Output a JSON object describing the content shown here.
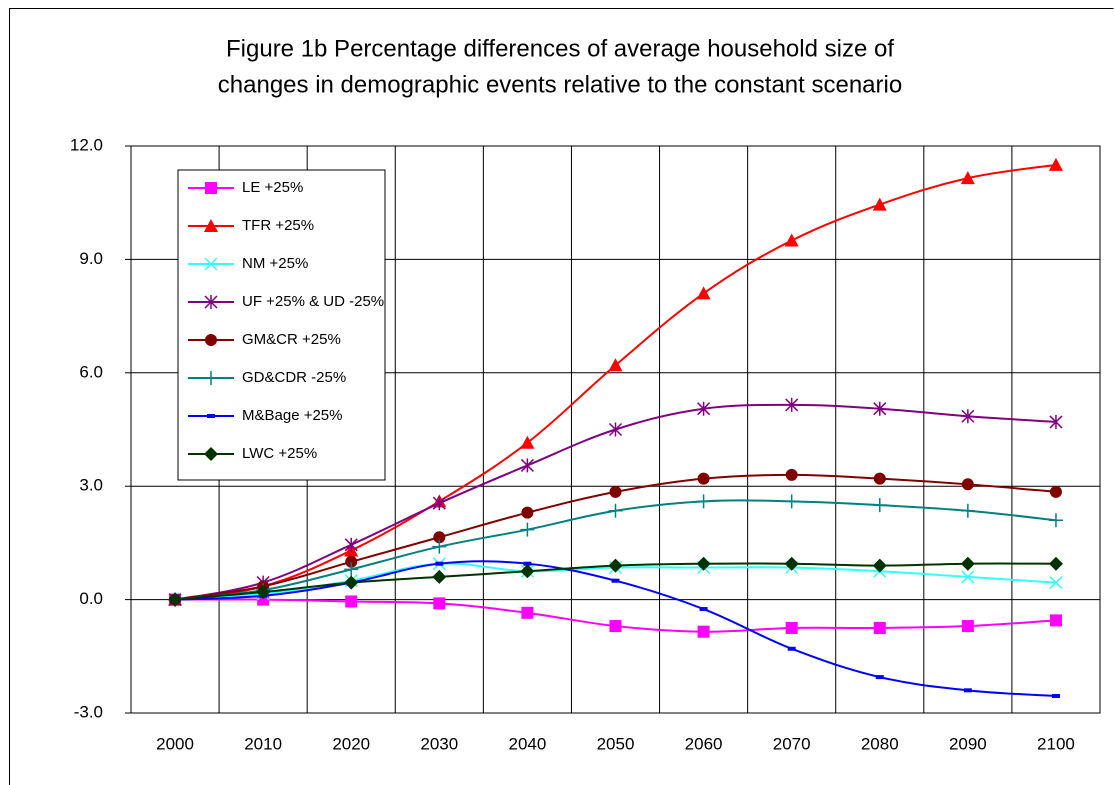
{
  "chart_data": {
    "type": "line",
    "title": [
      "Figure 1b Percentage differences of average household size of",
      "changes in demographic events relative to the constant scenario"
    ],
    "categories": [
      "2000",
      "2010",
      "2020",
      "2030",
      "2040",
      "2050",
      "2060",
      "2070",
      "2080",
      "2090",
      "2100"
    ],
    "ylim": [
      -3,
      12
    ],
    "yticks": [
      {
        "value": -3,
        "label": "-3.0"
      },
      {
        "value": 0,
        "label": "0.0"
      },
      {
        "value": 3,
        "label": "3.0"
      },
      {
        "value": 6,
        "label": "6.0"
      },
      {
        "value": 9,
        "label": "9.0"
      },
      {
        "value": 12,
        "label": "12.0"
      }
    ],
    "grid": true,
    "legend": "top-left",
    "series": [
      {
        "name": "LE +25%",
        "color": "#ff00ff",
        "marker": "square",
        "values": [
          0,
          0,
          -0.05,
          -0.1,
          -0.35,
          -0.7,
          -0.85,
          -0.75,
          -0.75,
          -0.7,
          -0.55
        ]
      },
      {
        "name": "TFR +25%",
        "color": "#ff0000",
        "marker": "triangle",
        "values": [
          0,
          0.35,
          1.3,
          2.6,
          4.15,
          6.2,
          8.1,
          9.5,
          10.45,
          11.15,
          11.5
        ]
      },
      {
        "name": "NM +25%",
        "color": "#33ffff",
        "marker": "x",
        "values": [
          0,
          0.15,
          0.5,
          0.95,
          0.75,
          0.85,
          0.85,
          0.85,
          0.75,
          0.6,
          0.45
        ]
      },
      {
        "name": "UF +25% & UD -25%",
        "color": "#800080",
        "marker": "asterisk",
        "values": [
          0,
          0.45,
          1.45,
          2.55,
          3.55,
          4.5,
          5.05,
          5.15,
          5.05,
          4.85,
          4.7
        ]
      },
      {
        "name": "GM&CR +25%",
        "color": "#800000",
        "marker": "circle",
        "values": [
          0,
          0.35,
          1.0,
          1.65,
          2.3,
          2.85,
          3.2,
          3.3,
          3.2,
          3.05,
          2.85
        ]
      },
      {
        "name": "GD&CDR -25%",
        "color": "#008080",
        "marker": "plus",
        "values": [
          0,
          0.25,
          0.8,
          1.4,
          1.85,
          2.35,
          2.6,
          2.6,
          2.5,
          2.35,
          2.1
        ]
      },
      {
        "name": "M&Bage +25%",
        "color": "#0000ff",
        "marker": "dash",
        "values": [
          0,
          0.1,
          0.45,
          0.95,
          0.95,
          0.5,
          -0.25,
          -1.3,
          -2.05,
          -2.4,
          -2.55
        ]
      },
      {
        "name": "LWC +25%",
        "color": "#003300",
        "marker": "diamond",
        "values": [
          0,
          0.2,
          0.45,
          0.6,
          0.75,
          0.9,
          0.95,
          0.95,
          0.9,
          0.95,
          0.95
        ]
      }
    ]
  }
}
